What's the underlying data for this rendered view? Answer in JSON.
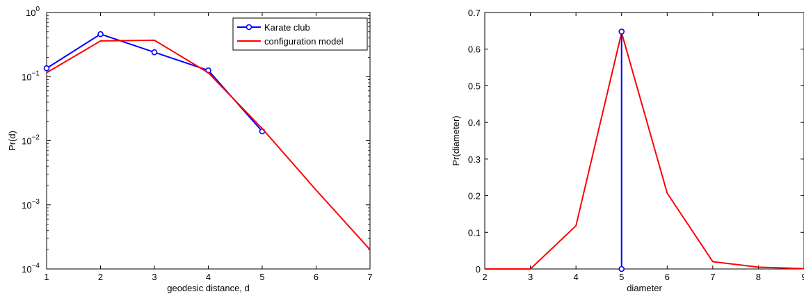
{
  "chart_data": [
    {
      "type": "line",
      "title": "",
      "xlabel": "geodesic distance, d",
      "ylabel": "Pr(d)",
      "xlim": [
        1,
        7
      ],
      "ylim": [
        0.0001,
        1
      ],
      "yscale": "log",
      "x_ticks": [
        "1",
        "2",
        "3",
        "4",
        "5",
        "6",
        "7"
      ],
      "y_ticks": [
        {
          "value": 0.0001,
          "base": "10",
          "exp": "−4"
        },
        {
          "value": 0.001,
          "base": "10",
          "exp": "−3"
        },
        {
          "value": 0.01,
          "base": "10",
          "exp": "−2"
        },
        {
          "value": 0.1,
          "base": "10",
          "exp": "−1"
        },
        {
          "value": 1,
          "base": "10",
          "exp": "0"
        }
      ],
      "grid": false,
      "legend": "top-right",
      "series": [
        {
          "name": "Karate club",
          "color": "#0000ff",
          "marker": "circle",
          "x": [
            1,
            2,
            3,
            4,
            5
          ],
          "y": [
            0.135,
            0.46,
            0.24,
            0.125,
            0.014
          ]
        },
        {
          "name": "configuration model",
          "color": "#ff0000",
          "marker": "none",
          "x": [
            1,
            2,
            3,
            4,
            5,
            6,
            7
          ],
          "y": [
            0.115,
            0.36,
            0.37,
            0.115,
            0.0155,
            0.0017,
            0.0002
          ]
        }
      ]
    },
    {
      "type": "line",
      "title": "",
      "xlabel": "diameter",
      "ylabel": "Pr(diameter)",
      "xlim": [
        2,
        9
      ],
      "ylim": [
        0,
        0.7
      ],
      "yscale": "linear",
      "x_ticks": [
        "2",
        "3",
        "4",
        "5",
        "6",
        "7",
        "8",
        "9"
      ],
      "y_ticks": [
        "0",
        "0.1",
        "0.2",
        "0.3",
        "0.4",
        "0.5",
        "0.6",
        "0.7"
      ],
      "grid": false,
      "series": [
        {
          "name": "configuration model",
          "color": "#ff0000",
          "marker": "none",
          "x": [
            2,
            3,
            4,
            5,
            6,
            7,
            8,
            9
          ],
          "y": [
            0,
            0,
            0.118,
            0.645,
            0.207,
            0.02,
            0.005,
            0.001
          ]
        },
        {
          "name": "Karate club",
          "color": "#0000ff",
          "marker": "circle",
          "style": "stem",
          "x": [
            5,
            5
          ],
          "y": [
            0,
            0.648
          ]
        }
      ]
    }
  ]
}
